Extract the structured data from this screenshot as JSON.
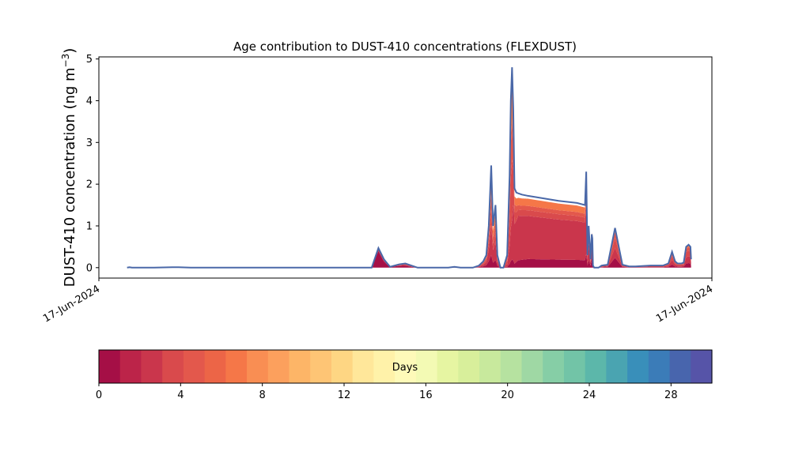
{
  "chart_data": {
    "type": "area",
    "title": "Age contribution to DUST-410 concentrations (FLEXDUST)",
    "ylabel": "DUST-410 concentration (ng m",
    "ylabel_superscript": "−3",
    "ylabel_close": ")",
    "xlabel": "",
    "x_tick_labels": [
      "17-Jun-2024",
      "17-Jun-2024"
    ],
    "xlim": [
      0,
      100
    ],
    "ylim": [
      -0.25,
      5.05
    ],
    "y_ticks": [
      0,
      1,
      2,
      3,
      4,
      5
    ],
    "grid": false,
    "outline_color": "#4a68a8",
    "total": {
      "x": [
        4.6,
        5.0,
        5.4,
        6.0,
        7.0,
        9.0,
        12.0,
        13.0,
        15.0,
        20.0,
        30.0,
        40.0,
        43.0,
        44.5,
        45.6,
        46.5,
        47.5,
        49.0,
        50.0,
        51.0,
        52.0,
        54.0,
        56.0,
        57.0,
        58.0,
        59.0,
        60.0,
        61.0,
        62.0,
        62.7,
        63.2,
        63.6,
        64.0,
        64.3,
        64.7,
        65.0,
        65.5,
        66.0,
        66.6,
        67.0,
        67.2,
        67.4,
        67.6,
        67.8,
        68.1,
        68.4,
        69.0,
        70.0,
        75.0,
        78.0,
        79.3,
        79.5,
        79.7,
        79.9,
        80.2,
        80.4,
        80.5,
        80.6,
        80.8,
        81.0,
        81.2,
        81.5,
        82.0,
        83.0,
        84.2,
        85.4,
        86.5,
        87.5,
        90.0,
        92.0,
        92.9,
        93.5,
        94.0,
        94.4,
        95.0,
        95.4,
        95.8,
        96.2,
        96.5,
        96.6
      ],
      "y": [
        0.0,
        0.01,
        0.0,
        0.0,
        0.0,
        0.0,
        0.01,
        0.01,
        0.0,
        0.0,
        0.0,
        0.0,
        0.0,
        0.0,
        0.47,
        0.2,
        0.02,
        0.08,
        0.1,
        0.05,
        0.0,
        0.0,
        0.0,
        0.0,
        0.02,
        0.0,
        0.0,
        0.0,
        0.05,
        0.15,
        0.3,
        1.0,
        2.45,
        1.0,
        1.5,
        0.3,
        0.0,
        0.0,
        0.3,
        2.2,
        4.0,
        4.8,
        3.8,
        1.9,
        1.8,
        1.78,
        1.75,
        1.72,
        1.6,
        1.55,
        1.5,
        2.3,
        0.3,
        1.0,
        0.2,
        0.8,
        0.7,
        0.05,
        0.0,
        0.0,
        0.0,
        0.0,
        0.05,
        0.07,
        0.95,
        0.07,
        0.03,
        0.03,
        0.05,
        0.05,
        0.1,
        0.38,
        0.15,
        0.1,
        0.1,
        0.12,
        0.5,
        0.55,
        0.5,
        0.2
      ]
    },
    "age_fractions": [
      {
        "x": [
          4.6,
          44.5,
          45.6,
          46.5,
          47.5,
          49.0,
          50.0,
          51.0,
          56.0,
          62.0,
          63.0,
          63.6,
          64.0,
          64.3,
          64.7,
          65.0,
          65.5,
          66.0,
          66.6,
          67.0,
          67.4,
          67.8,
          68.4,
          70.0,
          75.0,
          79.3,
          80.0,
          80.5,
          81.0,
          82.0,
          84.2,
          85.4,
          93.5,
          95.8,
          96.6
        ],
        "f": [
          0.9,
          0.9,
          0.85,
          0.75,
          0.7,
          0.5,
          0.45,
          0.4,
          0.2,
          0.25,
          0.2,
          0.15,
          0.12,
          0.12,
          0.12,
          0.15,
          0.2,
          0.2,
          0.05,
          0.04,
          0.04,
          0.05,
          0.1,
          0.12,
          0.12,
          0.12,
          0.2,
          0.3,
          0.3,
          0.25,
          0.25,
          0.25,
          0.2,
          0.2,
          0.2
        ]
      },
      {
        "x": [
          4.6,
          44.5,
          46.5,
          49.0,
          56.0,
          63.0,
          64.0,
          65.0,
          66.6,
          67.4,
          67.8,
          68.4,
          70.0,
          75.0,
          79.3,
          80.0,
          81.0,
          84.2,
          93.5,
          96.6
        ],
        "f": [
          0.05,
          0.05,
          0.1,
          0.2,
          0.3,
          0.25,
          0.3,
          0.3,
          0.2,
          0.2,
          0.5,
          0.6,
          0.6,
          0.6,
          0.6,
          0.35,
          0.35,
          0.25,
          0.3,
          0.3
        ]
      },
      {
        "x": [
          4.6,
          44.5,
          49.0,
          56.0,
          63.0,
          64.0,
          65.0,
          66.6,
          67.4,
          67.8,
          68.4,
          70.0,
          75.0,
          79.3,
          80.0,
          84.2,
          93.5,
          96.6
        ],
        "f": [
          0.03,
          0.03,
          0.15,
          0.2,
          0.2,
          0.15,
          0.15,
          0.3,
          0.3,
          0.15,
          0.08,
          0.08,
          0.08,
          0.08,
          0.2,
          0.25,
          0.25,
          0.25
        ]
      },
      {
        "x": [
          4.6,
          44.5,
          56.0,
          63.0,
          64.0,
          65.0,
          66.6,
          67.4,
          67.8,
          68.4,
          70.0,
          75.0,
          79.3,
          80.0,
          84.2,
          93.5,
          96.6
        ],
        "f": [
          0.01,
          0.01,
          0.1,
          0.15,
          0.15,
          0.15,
          0.2,
          0.2,
          0.1,
          0.06,
          0.06,
          0.06,
          0.06,
          0.1,
          0.15,
          0.15,
          0.15
        ]
      },
      {
        "x": [
          4.6,
          44.5,
          56.0,
          63.0,
          64.0,
          65.0,
          66.6,
          67.4,
          67.8,
          68.4,
          70.0,
          75.0,
          79.3,
          80.0,
          84.2,
          93.5,
          96.6
        ],
        "f": [
          0.01,
          0.01,
          0.05,
          0.15,
          0.18,
          0.15,
          0.2,
          0.2,
          0.1,
          0.1,
          0.1,
          0.1,
          0.1,
          0.1,
          0.1,
          0.1,
          0.1
        ]
      }
    ],
    "colorbar": {
      "label": "Days",
      "range": [
        0,
        30
      ],
      "ticks": [
        0,
        4,
        8,
        12,
        16,
        20,
        24,
        28
      ],
      "colors": [
        "#a50f46",
        "#bc2449",
        "#ca364c",
        "#d94a4c",
        "#e3584c",
        "#ec6547",
        "#f57748",
        "#f98e53",
        "#fca05d",
        "#fdb567",
        "#fec575",
        "#fed683",
        "#ffe79a",
        "#fff2a9",
        "#fefab9",
        "#f3fab4",
        "#e6f5a2",
        "#d8ef9b",
        "#c8e99d",
        "#b6e2a0",
        "#9fd8a4",
        "#86cea6",
        "#72c4a7",
        "#5cb7aa",
        "#4aa4b1",
        "#398fba",
        "#3b7cb8",
        "#4865ad",
        "#5654a8"
      ]
    }
  }
}
